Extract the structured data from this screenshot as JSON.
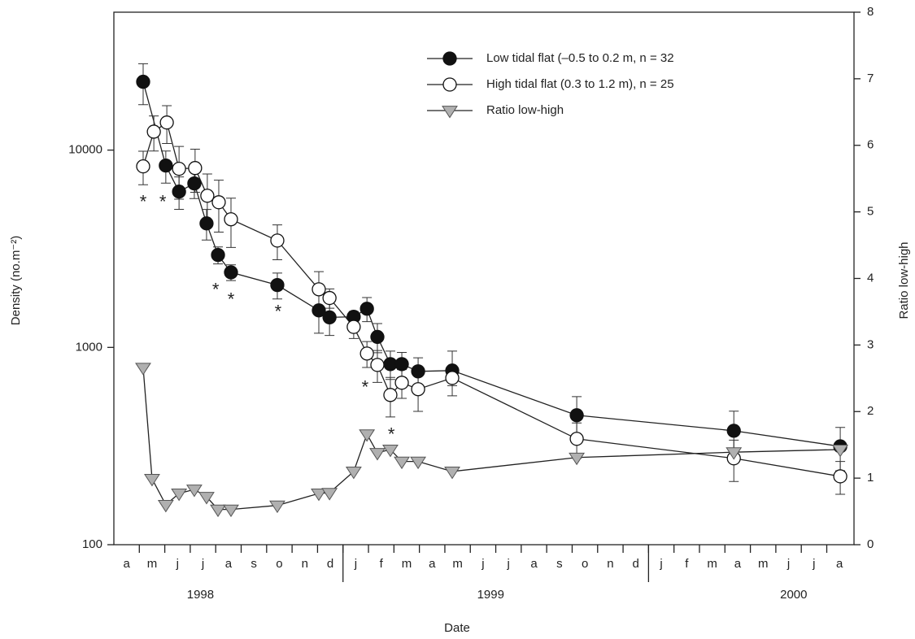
{
  "chart_data": {
    "type": "line",
    "xlabel": "Date",
    "ylabel": "Density (no.m⁻²)",
    "y2label": "Ratio low-high",
    "ylog": true,
    "xlim": [
      0,
      29.07
    ],
    "ylim": [
      100,
      50000
    ],
    "y2lim": [
      0,
      8
    ],
    "yticks": [
      100,
      1000,
      10000
    ],
    "y2ticks": [
      0,
      1,
      2,
      3,
      4,
      5,
      6,
      7,
      8
    ],
    "xticks": [
      {
        "value": 0.5,
        "label": "a"
      },
      {
        "value": 1.5,
        "label": "m"
      },
      {
        "value": 2.5,
        "label": "j"
      },
      {
        "value": 3.5,
        "label": "j"
      },
      {
        "value": 4.5,
        "label": "a"
      },
      {
        "value": 5.5,
        "label": "s"
      },
      {
        "value": 6.5,
        "label": "o"
      },
      {
        "value": 7.5,
        "label": "n"
      },
      {
        "value": 8.5,
        "label": "d"
      },
      {
        "value": 9.5,
        "label": "j"
      },
      {
        "value": 10.5,
        "label": "f"
      },
      {
        "value": 11.5,
        "label": "m"
      },
      {
        "value": 12.5,
        "label": "a"
      },
      {
        "value": 13.5,
        "label": "m"
      },
      {
        "value": 14.5,
        "label": "j"
      },
      {
        "value": 15.5,
        "label": "j"
      },
      {
        "value": 16.5,
        "label": "a"
      },
      {
        "value": 17.5,
        "label": "s"
      },
      {
        "value": 18.5,
        "label": "o"
      },
      {
        "value": 19.5,
        "label": "n"
      },
      {
        "value": 20.5,
        "label": "d"
      },
      {
        "value": 21.5,
        "label": "j"
      },
      {
        "value": 22.5,
        "label": "f"
      },
      {
        "value": 23.5,
        "label": "m"
      },
      {
        "value": 24.5,
        "label": "a"
      },
      {
        "value": 25.5,
        "label": "m"
      },
      {
        "value": 26.5,
        "label": "j"
      },
      {
        "value": 27.5,
        "label": "j"
      },
      {
        "value": 28.5,
        "label": "a"
      }
    ],
    "xminor": [
      1,
      2,
      3,
      4,
      5,
      6,
      7,
      8,
      9,
      10,
      11,
      12,
      13,
      14,
      15,
      16,
      17,
      18,
      19,
      20,
      21,
      22,
      23,
      24,
      25,
      26,
      27,
      28
    ],
    "year_ticks": [
      {
        "value": 3.4,
        "label": "1998"
      },
      {
        "value": 14.8,
        "label": "1999"
      },
      {
        "value": 26.7,
        "label": "2000"
      }
    ],
    "year_dividers": [
      9,
      21
    ],
    "legend": "top-right",
    "series": [
      {
        "name": "Low tidal flat (–0.5 to 0.2 m, n = 32",
        "color": "#111111",
        "marker": "circle",
        "x": [
          1.15,
          2.04,
          2.56,
          3.16,
          3.64,
          4.09,
          4.6,
          6.42,
          8.05,
          8.47,
          9.42,
          9.94,
          10.35,
          10.86,
          11.31,
          11.95,
          13.29,
          18.18,
          24.35,
          28.53
        ],
        "values": [
          22200,
          8350,
          6160,
          6780,
          4250,
          2940,
          2400,
          2070,
          1540,
          1420,
          1430,
          1570,
          1130,
          823,
          823,
          756,
          763,
          453,
          378,
          315
        ],
        "errors": [
          5200,
          1550,
          1150,
          1100,
          750,
          290,
          220,
          310,
          360,
          270,
          90,
          220,
          190,
          135,
          120,
          130,
          195,
          110,
          97,
          78
        ]
      },
      {
        "name": "High tidal flat (0.3 to 1.2 m), n = 25",
        "color": "#ffffff",
        "marker": "circle",
        "x": [
          1.15,
          1.57,
          2.08,
          2.56,
          3.19,
          3.67,
          4.12,
          4.6,
          6.42,
          8.05,
          8.47,
          9.42,
          9.94,
          10.35,
          10.86,
          11.31,
          11.95,
          13.29,
          18.18,
          24.35,
          28.53
        ],
        "values": [
          8270,
          12400,
          13800,
          8040,
          8110,
          5870,
          5440,
          4460,
          3480,
          1970,
          1780,
          1270,
          931,
          815,
          574,
          662,
          614,
          700,
          344,
          274,
          222
        ],
        "errors": [
          1600,
          2500,
          3000,
          2400,
          2000,
          1700,
          1600,
          1250,
          700,
          450,
          200,
          160,
          140,
          150,
          130,
          110,
          140,
          60,
          70,
          65,
          42
        ]
      },
      {
        "name": "Ratio low-high",
        "color": "#b0b0b0",
        "marker": "triangle-down",
        "axis": "y2",
        "x": [
          1.15,
          1.5,
          2.04,
          2.56,
          3.16,
          3.64,
          4.09,
          4.6,
          6.42,
          8.05,
          8.47,
          9.42,
          9.94,
          10.35,
          10.86,
          11.31,
          11.95,
          13.29,
          18.18,
          24.35,
          28.53
        ],
        "values": [
          2.66,
          0.99,
          0.6,
          0.77,
          0.83,
          0.72,
          0.53,
          0.53,
          0.59,
          0.77,
          0.78,
          1.1,
          1.66,
          1.38,
          1.43,
          1.25,
          1.25,
          1.1,
          1.31,
          1.39,
          1.43
        ]
      }
    ],
    "annotations": [
      {
        "text": "*",
        "x": 1.15,
        "y": 5400
      },
      {
        "text": "*",
        "x": 1.92,
        "y": 5400
      },
      {
        "text": "*",
        "x": 4.0,
        "y": 1940
      },
      {
        "text": "*",
        "x": 4.6,
        "y": 1730
      },
      {
        "text": "*",
        "x": 6.45,
        "y": 1500
      },
      {
        "text": "*",
        "x": 9.87,
        "y": 620
      },
      {
        "text": "*",
        "x": 10.9,
        "y": 357
      }
    ]
  }
}
